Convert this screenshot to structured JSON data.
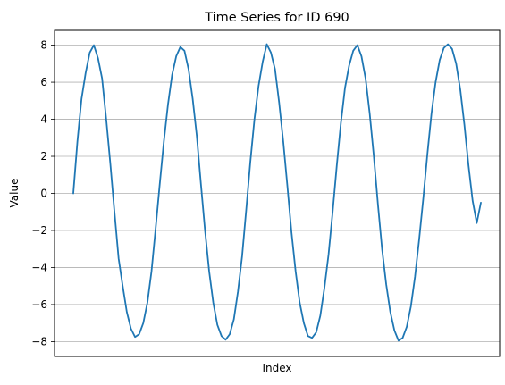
{
  "chart_data": {
    "type": "line",
    "title": "Time Series for ID 690",
    "xlabel": "Index",
    "ylabel": "Value",
    "ylim": [
      -8.8,
      8.8
    ],
    "yticks": [
      -8,
      -6,
      -4,
      -2,
      0,
      2,
      4,
      6,
      8
    ],
    "ytick_labels": [
      "−8",
      "−6",
      "−4",
      "−2",
      "0",
      "2",
      "4",
      "6",
      "8"
    ],
    "x_tick_labels_shown": false,
    "grid": "horizontal",
    "legend": "none",
    "series": [
      {
        "color": "#1f77b4",
        "x": [
          0,
          1,
          2,
          3,
          4,
          5,
          6,
          7,
          8,
          9,
          10,
          11,
          12,
          13,
          14,
          15,
          16,
          17,
          18,
          19,
          20,
          21,
          22,
          23,
          24,
          25,
          26,
          27,
          28,
          29,
          30,
          31,
          32,
          33,
          34,
          35,
          36,
          37,
          38,
          39,
          40,
          41,
          42,
          43,
          44,
          45,
          46,
          47,
          48,
          49,
          50,
          51,
          52,
          53,
          54,
          55,
          56,
          57,
          58,
          59,
          60,
          61,
          62,
          63,
          64,
          65,
          66,
          67,
          68,
          69,
          70,
          71,
          72,
          73,
          74,
          75,
          76,
          77,
          78,
          79,
          80,
          81,
          82,
          83,
          84,
          85,
          86,
          87,
          88,
          89,
          90,
          91,
          92,
          93,
          94,
          95,
          96,
          97,
          98,
          99
        ],
        "values": [
          0.0,
          2.8,
          5.1,
          6.5,
          7.6,
          8.0,
          7.3,
          6.2,
          4.0,
          1.6,
          -1.0,
          -3.5,
          -5.0,
          -6.4,
          -7.3,
          -7.75,
          -7.6,
          -7.0,
          -5.9,
          -4.2,
          -1.9,
          0.5,
          2.8,
          4.8,
          6.4,
          7.4,
          7.9,
          7.7,
          6.7,
          5.1,
          3.1,
          0.5,
          -2.0,
          -4.2,
          -5.9,
          -7.1,
          -7.7,
          -7.9,
          -7.6,
          -6.8,
          -5.3,
          -3.4,
          -0.9,
          1.7,
          4.0,
          5.8,
          7.1,
          8.05,
          7.6,
          6.7,
          4.9,
          2.8,
          0.4,
          -2.1,
          -4.2,
          -5.9,
          -7.0,
          -7.7,
          -7.8,
          -7.5,
          -6.6,
          -5.1,
          -3.3,
          -1.0,
          1.5,
          3.8,
          5.7,
          6.9,
          7.7,
          8.0,
          7.4,
          6.2,
          4.3,
          2.0,
          -0.6,
          -3.0,
          -4.9,
          -6.4,
          -7.4,
          -7.95,
          -7.8,
          -7.2,
          -6.1,
          -4.5,
          -2.5,
          -0.3,
          2.1,
          4.3,
          6.0,
          7.2,
          7.85,
          8.05,
          7.8,
          7.0,
          5.6,
          3.7,
          1.5,
          -0.4,
          -1.6,
          -0.5
        ]
      }
    ]
  }
}
